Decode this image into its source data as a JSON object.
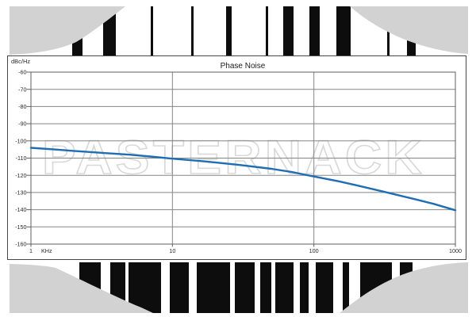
{
  "page": {
    "background": "#ffffff"
  },
  "decor": {
    "top_barcode_icon": "barcode-strip",
    "bottom_barcode_icon": "barcode-strip",
    "swoosh_color": "#d2d2d2",
    "bar_color": "#0d0d0d"
  },
  "chart": {
    "title": "Phase Noise",
    "y_unit_label": "dBc/Hz",
    "x_unit_label": "KHz",
    "watermark": "PASTERNACK",
    "colors": {
      "curve": "#1f6eb4",
      "gridline": "#858585",
      "frame": "#5f5f5f",
      "border": "#474747",
      "text": "#2a2a2a",
      "watermark_stroke": "#d9d9d9"
    }
  },
  "chart_data": {
    "type": "line",
    "title": "Phase Noise",
    "ylabel": "dBc/Hz",
    "xlabel": "KHz",
    "xscale": "log",
    "xlim": [
      1,
      1000
    ],
    "ylim": [
      -160,
      -60
    ],
    "xticks": [
      1,
      10,
      100,
      1000
    ],
    "yticks": [
      -60,
      -70,
      -80,
      -90,
      -100,
      -110,
      -120,
      -130,
      -140,
      -150,
      -160
    ],
    "grid": true,
    "legend": false,
    "series": [
      {
        "name": "Phase Noise",
        "color": "#1f6eb4",
        "x": [
          1,
          1.5,
          2,
          3,
          5,
          7,
          10,
          15,
          20,
          30,
          50,
          70,
          100,
          150,
          200,
          300,
          500,
          700,
          1000
        ],
        "values": [
          -104,
          -105,
          -105.8,
          -106.8,
          -108.0,
          -109.1,
          -110.3,
          -111.5,
          -112.5,
          -114.0,
          -116.2,
          -118.1,
          -120.7,
          -123.5,
          -125.8,
          -129.2,
          -133.6,
          -136.6,
          -140.3
        ]
      }
    ],
    "readings_at_decades": {
      "1": -104,
      "10": -110.3,
      "100": -120.7,
      "1000": -140.3
    }
  }
}
